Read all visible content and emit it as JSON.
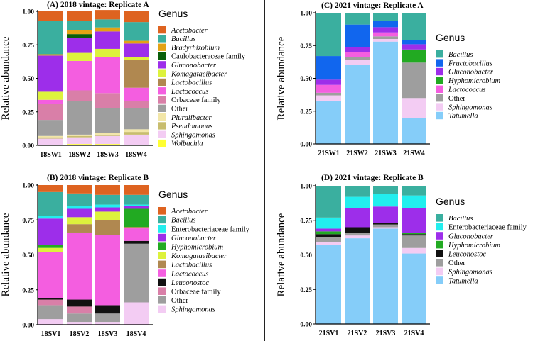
{
  "chart_data": [
    {
      "type": "bar",
      "stacked": true,
      "title": "(A) 2018 vintage: Replicate A",
      "ylabel": "Relative   abundance",
      "ylim": [
        0,
        1
      ],
      "yticks": [
        "0.00",
        "0.25",
        "0.50",
        "0.75",
        "1.00"
      ],
      "categories": [
        "18SW1",
        "18SW2",
        "18SW3",
        "18SW4"
      ],
      "legend_title": "Genus",
      "series": [
        {
          "name": "Wolbachia",
          "color": "#ffff33",
          "values": [
            0.0,
            0.01,
            0.01,
            0.0
          ]
        },
        {
          "name": "Sphingomonas",
          "color": "#f3ccf3",
          "values": [
            0.05,
            0.05,
            0.06,
            0.08
          ]
        },
        {
          "name": "Pseudomonas",
          "color": "#c8bd6e",
          "values": [
            0.01,
            0.01,
            0.01,
            0.02
          ]
        },
        {
          "name": "Pluralibacter",
          "color": "#f2e6a8",
          "values": [
            0.01,
            0.01,
            0.01,
            0.02
          ]
        },
        {
          "name": "Other",
          "color": "#9e9e9e",
          "values": [
            0.12,
            0.25,
            0.19,
            0.16
          ]
        },
        {
          "name": "Orbaceae family",
          "color": "#d97fa8",
          "values": [
            0.12,
            0.08,
            0.11,
            0.05
          ]
        },
        {
          "name": "Lactococcus",
          "color": "#f45ee0",
          "values": [
            0.03,
            0.22,
            0.27,
            0.1
          ]
        },
        {
          "name": "Lactobacillus",
          "color": "#b08850",
          "values": [
            0.0,
            0.0,
            0.0,
            0.21
          ]
        },
        {
          "name": "Komagataeibacter",
          "color": "#ddf23c",
          "values": [
            0.06,
            0.06,
            0.06,
            0.02
          ]
        },
        {
          "name": "Gluconobacter",
          "color": "#9d2eea",
          "values": [
            0.27,
            0.11,
            0.13,
            0.1
          ]
        },
        {
          "name": "Caulobacteraceae family",
          "color": "#0a5e0a",
          "values": [
            0.0,
            0.03,
            0.0,
            0.0
          ]
        },
        {
          "name": "Bradyrhizobium",
          "color": "#e3a215",
          "values": [
            0.01,
            0.03,
            0.03,
            0.02
          ]
        },
        {
          "name": "Bacillus",
          "color": "#3aaf9f",
          "values": [
            0.25,
            0.07,
            0.06,
            0.14
          ]
        },
        {
          "name": "Acetobacter",
          "color": "#de6320",
          "values": [
            0.07,
            0.07,
            0.07,
            0.08
          ]
        }
      ]
    },
    {
      "type": "bar",
      "stacked": true,
      "title": "(B) 2018 vintage: Replicate B",
      "ylabel": "Relative   abundance",
      "ylim": [
        0,
        1
      ],
      "yticks": [
        "0.00",
        "0.25",
        "0.50",
        "0.75",
        "1.00"
      ],
      "categories": [
        "18SV1",
        "18SV2",
        "18SV3",
        "18SV4"
      ],
      "legend_title": "Genus",
      "series": [
        {
          "name": "Sphingomonas",
          "color": "#f3ccf3",
          "values": [
            0.04,
            0.02,
            0.02,
            0.16
          ]
        },
        {
          "name": "Other",
          "color": "#9e9e9e",
          "values": [
            0.1,
            0.06,
            0.06,
            0.42
          ]
        },
        {
          "name": "Orbaceae family",
          "color": "#d97fa8",
          "values": [
            0.04,
            0.05,
            0.0,
            0.0
          ]
        },
        {
          "name": "Leuconostoc",
          "color": "#111111",
          "values": [
            0.01,
            0.05,
            0.06,
            0.02
          ]
        },
        {
          "name": "Lactococcus",
          "color": "#f45ee0",
          "values": [
            0.33,
            0.48,
            0.5,
            0.09
          ]
        },
        {
          "name": "Lactobacillus",
          "color": "#b08850",
          "values": [
            0.0,
            0.06,
            0.11,
            0.01
          ]
        },
        {
          "name": "Komagataeibacter",
          "color": "#ddf23c",
          "values": [
            0.03,
            0.05,
            0.06,
            0.0
          ]
        },
        {
          "name": "Hyphomicrobium",
          "color": "#22aa22",
          "values": [
            0.02,
            0.0,
            0.0,
            0.13
          ]
        },
        {
          "name": "Gluconobacter",
          "color": "#9d2eea",
          "values": [
            0.19,
            0.06,
            0.03,
            0.02
          ]
        },
        {
          "name": "Enterobacteriaceae family",
          "color": "#22eeee",
          "values": [
            0.02,
            0.02,
            0.02,
            0.01
          ]
        },
        {
          "name": "Bacillus",
          "color": "#3aaf9f",
          "values": [
            0.17,
            0.09,
            0.07,
            0.07
          ]
        },
        {
          "name": "Acetobacter",
          "color": "#de6320",
          "values": [
            0.05,
            0.06,
            0.07,
            0.07
          ]
        }
      ]
    },
    {
      "type": "bar",
      "stacked": true,
      "title": "(C) 2021 vintage: Replicate A",
      "ylabel": "Relative   abundance",
      "ylim": [
        0,
        1
      ],
      "yticks": [
        "0.00",
        "0.25",
        "0.50",
        "0.75",
        "1.00"
      ],
      "categories": [
        "21SW1",
        "21SW2",
        "21SW3",
        "21SW4"
      ],
      "legend_title": "Genus",
      "series": [
        {
          "name": "Tatumella",
          "color": "#85cdf9",
          "values": [
            0.33,
            0.6,
            0.78,
            0.2
          ]
        },
        {
          "name": "Sphingomonas",
          "color": "#f3ccf3",
          "values": [
            0.04,
            0.04,
            0.02,
            0.15
          ]
        },
        {
          "name": "Other",
          "color": "#9e9e9e",
          "values": [
            0.02,
            0.02,
            0.02,
            0.27
          ]
        },
        {
          "name": "Lactococcus",
          "color": "#f45ee0",
          "values": [
            0.06,
            0.04,
            0.03,
            0.0
          ]
        },
        {
          "name": "Hyphomicrobium",
          "color": "#22aa22",
          "values": [
            0.0,
            0.0,
            0.0,
            0.1
          ]
        },
        {
          "name": "Gluconobacter",
          "color": "#9d2eea",
          "values": [
            0.04,
            0.04,
            0.04,
            0.04
          ]
        },
        {
          "name": "Fructobacillus",
          "color": "#1166ee",
          "values": [
            0.18,
            0.17,
            0.05,
            0.03
          ]
        },
        {
          "name": "Bacillus",
          "color": "#3aaf9f",
          "values": [
            0.33,
            0.09,
            0.06,
            0.21
          ]
        }
      ]
    },
    {
      "type": "bar",
      "stacked": true,
      "title": "(D) 2021 vintage: Replicate B",
      "ylabel": "Relative   abundance",
      "ylim": [
        0,
        1
      ],
      "yticks": [
        "0.00",
        "0.25",
        "0.50",
        "0.75",
        "1.00"
      ],
      "categories": [
        "21SV1",
        "21SV2",
        "21SV3",
        "21SV4"
      ],
      "legend_title": "Genus",
      "series": [
        {
          "name": "Tatumella",
          "color": "#85cdf9",
          "values": [
            0.57,
            0.62,
            0.69,
            0.51
          ]
        },
        {
          "name": "Sphingomonas",
          "color": "#f3ccf3",
          "values": [
            0.02,
            0.02,
            0.01,
            0.04
          ]
        },
        {
          "name": "Other",
          "color": "#9e9e9e",
          "values": [
            0.04,
            0.02,
            0.02,
            0.09
          ]
        },
        {
          "name": "Leuconostoc",
          "color": "#111111",
          "values": [
            0.02,
            0.04,
            0.01,
            0.01
          ]
        },
        {
          "name": "Hyphomicrobium",
          "color": "#22aa22",
          "values": [
            0.02,
            0.0,
            0.0,
            0.01
          ]
        },
        {
          "name": "Gluconobacter",
          "color": "#9d2eea",
          "values": [
            0.02,
            0.14,
            0.12,
            0.18
          ]
        },
        {
          "name": "Enterobacteriaceae family",
          "color": "#22eeee",
          "values": [
            0.08,
            0.08,
            0.09,
            0.09
          ]
        },
        {
          "name": "Bacillus",
          "color": "#3aaf9f",
          "values": [
            0.23,
            0.08,
            0.06,
            0.07
          ]
        }
      ]
    }
  ],
  "legends": [
    [
      "Acetobacter",
      "Bacillus",
      "Bradyrhizobium",
      "Caulobacteraceae family",
      "Gluconobacter",
      "Komagataeibacter",
      "Lactobacillus",
      "Lactococcus",
      "Orbaceae family",
      "Other",
      "Pluralibacter",
      "Pseudomonas",
      "Sphingomonas",
      "Wolbachia"
    ],
    [
      "Acetobacter",
      "Bacillus",
      "Enterobacteriaceae family",
      "Gluconobacter",
      "Hyphomicrobium",
      "Komagataeibacter",
      "Lactobacillus",
      "Lactococcus",
      "Leuconostoc",
      "Orbaceae family",
      "Other",
      "Sphingomonas"
    ],
    [
      "Bacillus",
      "Fructobacillus",
      "Gluconobacter",
      "Hyphomicrobium",
      "Lactococcus",
      "Other",
      "Sphingomonas",
      "Tatumella"
    ],
    [
      "Bacillus",
      "Enterobacteriaceae family",
      "Gluconobacter",
      "Hyphomicrobium",
      "Leuconostoc",
      "Other",
      "Sphingomonas",
      "Tatumella"
    ]
  ],
  "non_italic": [
    "Caulobacteraceae family",
    "Orbaceae family",
    "Other",
    "Enterobacteriaceae family"
  ]
}
